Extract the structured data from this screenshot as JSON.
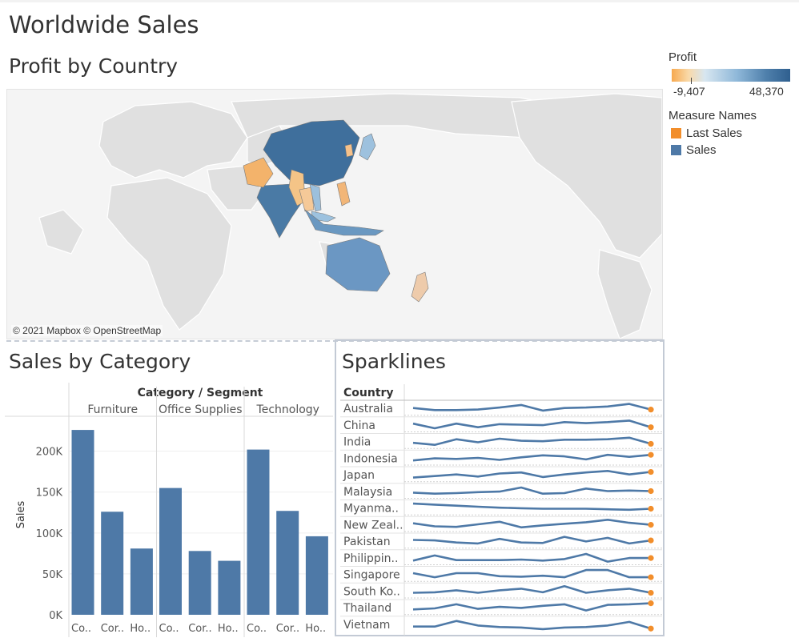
{
  "dashboard": {
    "title": "Worldwide Sales"
  },
  "map": {
    "title": "Profit by Country",
    "credit": "© 2021 Mapbox © OpenStreetMap"
  },
  "legend": {
    "profit_title": "Profit",
    "profit_min": "-9,407",
    "profit_max": "48,370",
    "measure_title": "Measure Names",
    "items": [
      {
        "label": "Last Sales",
        "color": "#f28e2b"
      },
      {
        "label": "Sales",
        "color": "#4e79a7"
      }
    ]
  },
  "colors": {
    "bar": "#4e79a7",
    "spark_line": "#4e79a7",
    "spark_dot": "#f28e2b",
    "profit_low": "#f7a94f",
    "profit_high": "#2f5f8f"
  },
  "chart_data": [
    {
      "type": "bar",
      "title": "Sales by Category",
      "header": "Category / Segment",
      "ylabel": "Sales",
      "ylim": [
        0,
        230000
      ],
      "yticks": [
        {
          "value": 0,
          "label": "0K"
        },
        {
          "value": 50000,
          "label": "50K"
        },
        {
          "value": 100000,
          "label": "100K"
        },
        {
          "value": 150000,
          "label": "150K"
        },
        {
          "value": 200000,
          "label": "200K"
        }
      ],
      "grid": true,
      "groups": [
        {
          "category": "Furniture",
          "segments": [
            "Co..",
            "Cor..",
            "Ho.."
          ],
          "values": [
            226000,
            126000,
            81000
          ]
        },
        {
          "category": "Office Supplies",
          "segments": [
            "Co..",
            "Cor..",
            "Ho.."
          ],
          "values": [
            155000,
            78000,
            66000
          ]
        },
        {
          "category": "Technology",
          "segments": [
            "Co..",
            "Cor..",
            "Ho.."
          ],
          "values": [
            202000,
            127000,
            96000
          ]
        }
      ]
    },
    {
      "type": "line",
      "title": "Sparklines",
      "row_header": "Country",
      "series": [
        {
          "name": "Australia",
          "values": [
            0.55,
            0.35,
            0.35,
            0.4,
            0.6,
            0.85,
            0.3,
            0.55,
            0.6,
            0.7,
            0.95,
            0.4
          ]
        },
        {
          "name": "China",
          "values": [
            0.65,
            0.2,
            0.65,
            0.3,
            0.6,
            0.55,
            0.5,
            0.8,
            0.7,
            0.8,
            0.95,
            0.3
          ]
        },
        {
          "name": "India",
          "values": [
            0.4,
            0.2,
            0.75,
            0.45,
            0.8,
            0.6,
            0.55,
            0.7,
            0.7,
            0.75,
            0.9,
            0.3
          ]
        },
        {
          "name": "Indonesia",
          "values": [
            0.3,
            0.5,
            0.45,
            0.55,
            0.35,
            0.6,
            0.8,
            0.7,
            0.4,
            0.85,
            0.65,
            0.85
          ]
        },
        {
          "name": "Japan",
          "values": [
            0.25,
            0.4,
            0.55,
            0.35,
            0.65,
            0.75,
            0.3,
            0.55,
            0.75,
            0.9,
            0.55,
            0.8
          ]
        },
        {
          "name": "Malaysia",
          "values": [
            0.4,
            0.3,
            0.35,
            0.45,
            0.5,
            0.9,
            0.3,
            0.35,
            0.8,
            0.55,
            0.6,
            0.55
          ]
        },
        {
          "name": "Myanma..",
          "values": [
            0.95,
            0.85,
            0.75,
            0.65,
            0.55,
            0.5,
            0.45,
            0.45,
            0.45,
            0.4,
            0.35,
            0.45
          ]
        },
        {
          "name": "New Zeal..",
          "values": [
            0.65,
            0.35,
            0.3,
            0.55,
            0.8,
            0.25,
            0.45,
            0.6,
            0.75,
            1.0,
            0.7,
            0.5
          ]
        },
        {
          "name": "Pakistan",
          "values": [
            0.65,
            0.6,
            0.4,
            0.3,
            0.75,
            0.4,
            0.35,
            0.95,
            0.5,
            0.85,
            0.3,
            0.6
          ]
        },
        {
          "name": "Philippin..",
          "values": [
            0.25,
            0.75,
            0.3,
            0.3,
            0.3,
            0.35,
            0.25,
            0.4,
            0.9,
            0.15,
            0.5,
            0.5
          ]
        },
        {
          "name": "Singapore",
          "values": [
            0.65,
            0.25,
            0.65,
            0.65,
            0.35,
            0.3,
            0.4,
            0.25,
            0.95,
            0.95,
            0.25,
            0.25
          ]
        },
        {
          "name": "South Ko..",
          "values": [
            0.35,
            0.4,
            0.6,
            0.35,
            0.6,
            0.75,
            0.4,
            1.0,
            0.35,
            0.6,
            0.75,
            0.35
          ]
        },
        {
          "name": "Thailand",
          "values": [
            0.35,
            0.45,
            0.85,
            0.4,
            0.6,
            0.5,
            0.7,
            0.85,
            0.25,
            0.8,
            0.85,
            0.95
          ]
        },
        {
          "name": "Vietnam",
          "values": [
            0.3,
            0.3,
            0.85,
            0.4,
            0.25,
            0.2,
            0.05,
            0.2,
            0.25,
            0.4,
            0.75,
            0.1
          ]
        }
      ]
    }
  ]
}
